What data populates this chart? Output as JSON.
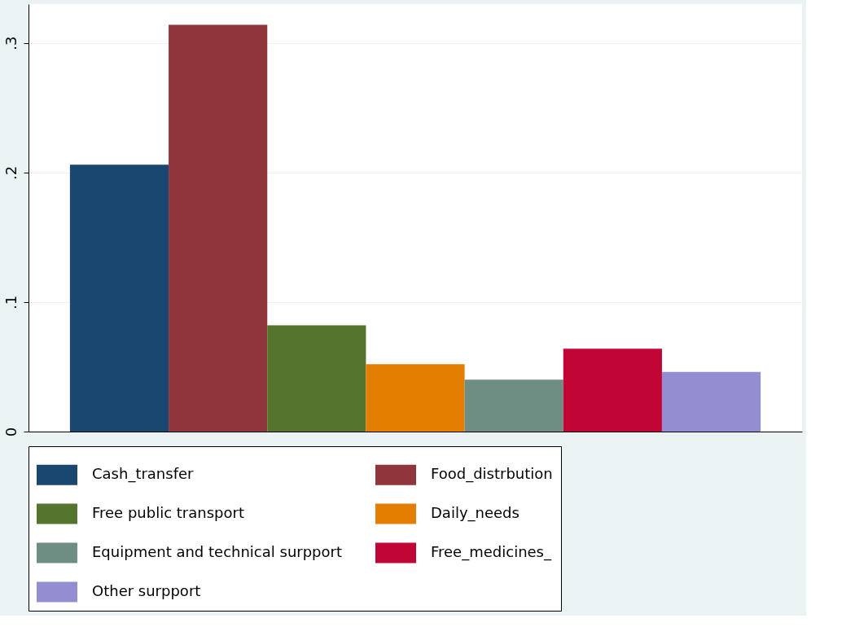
{
  "chart_data": {
    "type": "bar",
    "categories": [
      null
    ],
    "series": [
      {
        "name": "Cash_transfer",
        "color": "#1a476f",
        "values": [
          0.206
        ]
      },
      {
        "name": "Food_distrbution",
        "color": "#90353b",
        "values": [
          0.314
        ]
      },
      {
        "name": "Free public transport",
        "color": "#55752f",
        "values": [
          0.082
        ]
      },
      {
        "name": "Daily_needs",
        "color": "#e37e00",
        "values": [
          0.052
        ]
      },
      {
        "name": "Equipment and technical surpport",
        "color": "#6e8e84",
        "values": [
          0.04
        ]
      },
      {
        "name": "Free_medicines_",
        "color": "#c10534",
        "values": [
          0.064
        ]
      },
      {
        "name": "Other surpport",
        "color": "#938dd2",
        "values": [
          0.046
        ]
      }
    ],
    "ylim": [
      0,
      0.33
    ],
    "yticks": [
      {
        "value": 0,
        "label": "0"
      },
      {
        "value": 0.1,
        "label": ".1"
      },
      {
        "value": 0.2,
        "label": ".2"
      },
      {
        "value": 0.3,
        "label": ".3"
      }
    ],
    "grid": "y",
    "legend": "bottom"
  }
}
